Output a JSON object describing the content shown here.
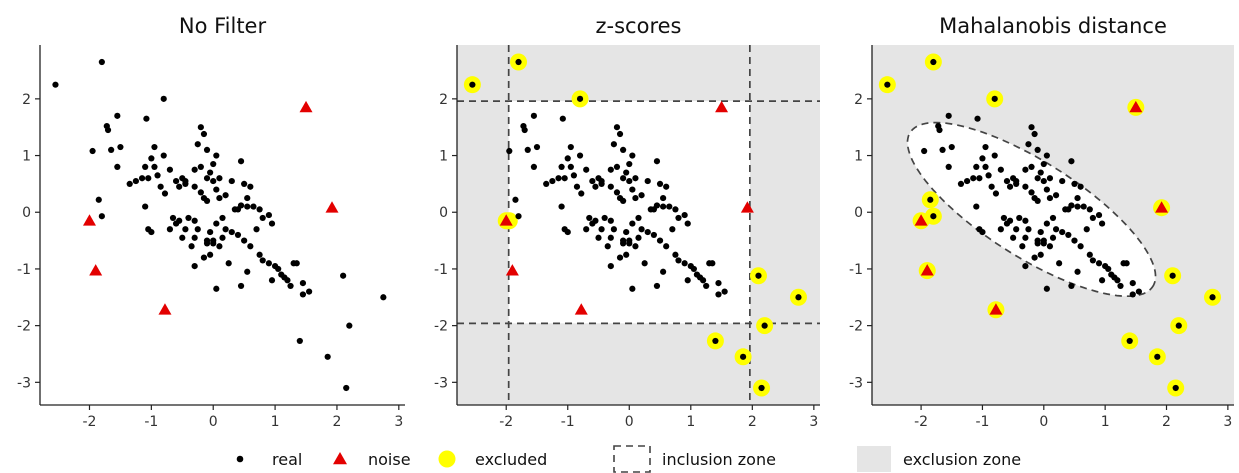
{
  "chart_data": {
    "type": "scatter",
    "panels": [
      {
        "title": "No Filter",
        "filter": "none"
      },
      {
        "title": "z-scores",
        "filter": "zscore",
        "zone_limits": {
          "x": [
            -1.96,
            1.96
          ],
          "y": [
            -1.96,
            1.96
          ]
        }
      },
      {
        "title": "Mahalanobis distance",
        "filter": "mahalanobis",
        "ellipse": {
          "center": [
            -0.2,
            0.05
          ],
          "semi_major": 2.4,
          "semi_minor": 0.82,
          "angle_deg": -35
        }
      }
    ],
    "xlim": [
      -2.8,
      3.1
    ],
    "ylim": [
      -3.4,
      2.95
    ],
    "xticks": [
      "-2",
      "-1",
      "0",
      "1",
      "2",
      "3"
    ],
    "yticks": [
      "2",
      "1",
      "0",
      "-1",
      "-2",
      "-3"
    ],
    "grid": false,
    "real_points": [
      [
        -2.55,
        2.25
      ],
      [
        -1.8,
        2.65
      ],
      [
        -0.8,
        2.0
      ],
      [
        -1.95,
        1.08
      ],
      [
        -1.7,
        1.45
      ],
      [
        -1.72,
        1.52
      ],
      [
        -1.55,
        1.7
      ],
      [
        -1.55,
        0.8
      ],
      [
        -1.85,
        0.22
      ],
      [
        -1.8,
        -0.07
      ],
      [
        -1.65,
        1.1
      ],
      [
        -1.5,
        1.15
      ],
      [
        -1.08,
        1.65
      ],
      [
        -0.95,
        1.15
      ],
      [
        -0.8,
        1.0
      ],
      [
        -1.0,
        0.95
      ],
      [
        -1.1,
        0.8
      ],
      [
        -0.95,
        0.8
      ],
      [
        -0.9,
        0.65
      ],
      [
        -0.7,
        0.75
      ],
      [
        -0.85,
        0.45
      ],
      [
        -0.78,
        0.33
      ],
      [
        -0.6,
        0.55
      ],
      [
        -0.5,
        0.6
      ],
      [
        -0.55,
        0.45
      ],
      [
        -0.3,
        0.75
      ],
      [
        -0.45,
        0.5
      ],
      [
        -1.35,
        0.5
      ],
      [
        -1.25,
        0.55
      ],
      [
        -1.15,
        0.6
      ],
      [
        -1.05,
        0.6
      ],
      [
        -1.1,
        0.1
      ],
      [
        -0.2,
        1.5
      ],
      [
        -0.15,
        1.38
      ],
      [
        -0.25,
        1.2
      ],
      [
        -0.1,
        1.1
      ],
      [
        0.05,
        1.0
      ],
      [
        0.0,
        0.85
      ],
      [
        -0.2,
        0.8
      ],
      [
        -0.05,
        0.7
      ],
      [
        -0.1,
        0.6
      ],
      [
        0.0,
        0.55
      ],
      [
        0.1,
        0.6
      ],
      [
        0.05,
        0.4
      ],
      [
        -0.2,
        0.35
      ],
      [
        -0.3,
        0.45
      ],
      [
        -0.15,
        0.25
      ],
      [
        -0.1,
        0.2
      ],
      [
        0.1,
        0.25
      ],
      [
        0.2,
        0.3
      ],
      [
        0.3,
        0.55
      ],
      [
        0.5,
        0.5
      ],
      [
        0.6,
        0.45
      ],
      [
        0.55,
        0.25
      ],
      [
        0.4,
        0.05
      ],
      [
        0.45,
        0.12
      ],
      [
        0.55,
        0.1
      ],
      [
        0.65,
        0.1
      ],
      [
        0.75,
        0.05
      ],
      [
        0.8,
        -0.1
      ],
      [
        0.9,
        -0.05
      ],
      [
        0.95,
        -0.2
      ],
      [
        0.7,
        -0.3
      ],
      [
        0.6,
        -0.6
      ],
      [
        0.5,
        -0.5
      ],
      [
        0.4,
        -0.4
      ],
      [
        0.3,
        -0.35
      ],
      [
        0.2,
        -0.3
      ],
      [
        0.15,
        -0.45
      ],
      [
        0.0,
        -0.5
      ],
      [
        0.05,
        -0.2
      ],
      [
        -0.05,
        -0.35
      ],
      [
        -0.1,
        -0.5
      ],
      [
        -0.3,
        -0.45
      ],
      [
        -0.45,
        -0.3
      ],
      [
        -0.55,
        -0.15
      ],
      [
        -0.6,
        -0.2
      ],
      [
        -0.4,
        -0.1
      ],
      [
        -0.3,
        -0.15
      ],
      [
        -0.25,
        -0.3
      ],
      [
        -0.1,
        -0.55
      ],
      [
        0.0,
        -0.55
      ],
      [
        0.1,
        -0.6
      ],
      [
        -0.05,
        -0.75
      ],
      [
        -0.15,
        -0.8
      ],
      [
        -0.35,
        -0.6
      ],
      [
        -0.5,
        -0.45
      ],
      [
        -0.7,
        -0.3
      ],
      [
        -0.65,
        -0.1
      ],
      [
        -1.05,
        -0.3
      ],
      [
        -1.0,
        -0.35
      ],
      [
        -0.3,
        -0.95
      ],
      [
        0.25,
        -0.9
      ],
      [
        0.55,
        -1.05
      ],
      [
        0.8,
        -0.85
      ],
      [
        0.9,
        -0.9
      ],
      [
        1.0,
        -0.95
      ],
      [
        1.05,
        -1.0
      ],
      [
        1.1,
        -1.1
      ],
      [
        1.2,
        -1.2
      ],
      [
        1.3,
        -0.9
      ],
      [
        1.25,
        -1.3
      ],
      [
        1.35,
        -0.9
      ],
      [
        1.45,
        -1.25
      ],
      [
        1.55,
        -1.4
      ],
      [
        1.45,
        -1.45
      ],
      [
        0.05,
        -1.35
      ],
      [
        0.45,
        -1.3
      ],
      [
        0.95,
        -1.2
      ],
      [
        1.15,
        -1.15
      ],
      [
        0.75,
        -0.75
      ],
      [
        0.35,
        0.05
      ],
      [
        0.45,
        0.9
      ],
      [
        -0.45,
        0.55
      ],
      [
        0.15,
        -0.1
      ],
      [
        2.1,
        -1.12
      ],
      [
        2.75,
        -1.5
      ],
      [
        2.2,
        -2.0
      ],
      [
        1.4,
        -2.27
      ],
      [
        1.85,
        -2.55
      ],
      [
        2.15,
        -3.1
      ]
    ],
    "noise_points": [
      [
        1.5,
        1.85
      ],
      [
        -2.0,
        -0.15
      ],
      [
        1.92,
        0.08
      ],
      [
        -1.9,
        -1.03
      ],
      [
        -0.78,
        -1.72
      ]
    ],
    "excluded": {
      "zscore": [
        [
          -2.55,
          2.25
        ],
        [
          -1.8,
          2.65
        ],
        [
          -0.8,
          2.0
        ],
        [
          -2.0,
          -0.15
        ],
        [
          -1.95,
          -0.15
        ],
        [
          2.1,
          -1.12
        ],
        [
          2.75,
          -1.5
        ],
        [
          2.2,
          -2.0
        ],
        [
          1.4,
          -2.27
        ],
        [
          1.85,
          -2.55
        ],
        [
          2.15,
          -3.1
        ]
      ],
      "mahalanobis": [
        [
          -2.55,
          2.25
        ],
        [
          -1.8,
          2.65
        ],
        [
          -0.8,
          2.0
        ],
        [
          1.5,
          1.85
        ],
        [
          -1.85,
          0.22
        ],
        [
          -1.8,
          -0.07
        ],
        [
          -2.0,
          -0.15
        ],
        [
          1.92,
          0.08
        ],
        [
          -1.9,
          -1.03
        ],
        [
          -0.78,
          -1.72
        ],
        [
          2.1,
          -1.12
        ],
        [
          2.75,
          -1.5
        ],
        [
          2.2,
          -2.0
        ],
        [
          1.4,
          -2.27
        ],
        [
          1.85,
          -2.55
        ],
        [
          2.15,
          -3.1
        ]
      ]
    },
    "legend": {
      "position": "bottom",
      "items": [
        {
          "key": "real",
          "label": "real"
        },
        {
          "key": "noise",
          "label": "noise"
        },
        {
          "key": "excluded",
          "label": "excluded"
        },
        {
          "key": "inclusion",
          "label": "inclusion zone"
        },
        {
          "key": "exclusion",
          "label": "exclusion zone"
        }
      ]
    },
    "colors": {
      "real": "#000000",
      "noise": "#e30000",
      "excluded": "#ffff00",
      "exclusion_fill": "#e5e5e5",
      "inclusion_line": "#444444",
      "axis": "#222222"
    }
  }
}
